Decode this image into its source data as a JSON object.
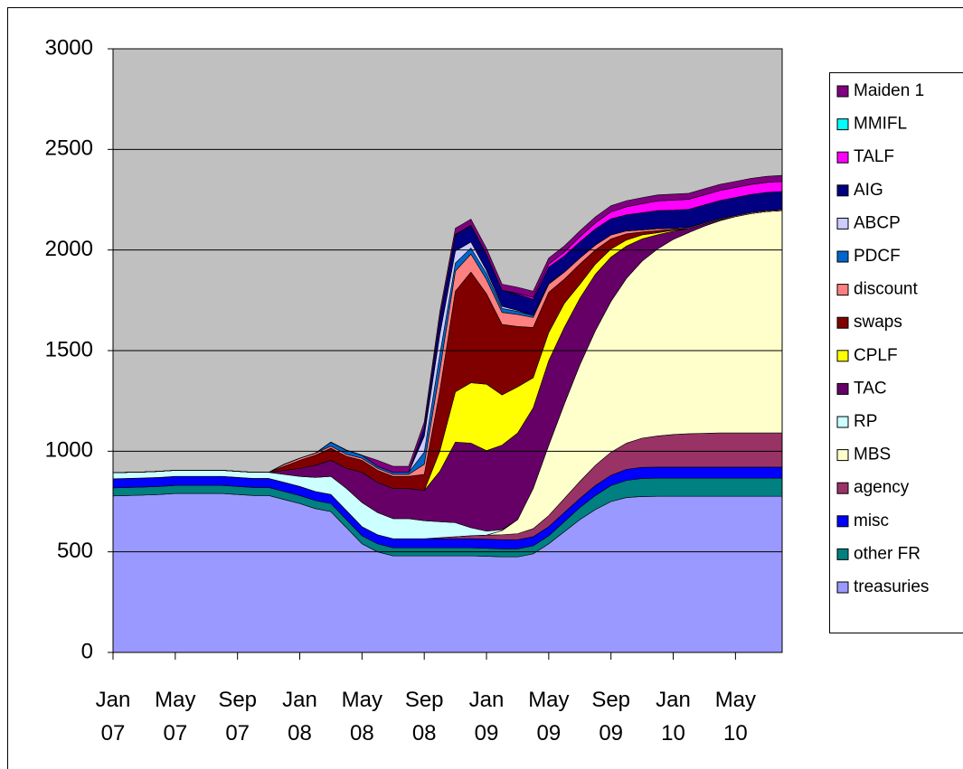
{
  "chart_data": {
    "type": "stacked_area",
    "categories": [
      "Jan 07",
      null,
      null,
      null,
      "May 07",
      null,
      null,
      null,
      "Sep 07",
      null,
      null,
      null,
      "Jan 08",
      null,
      null,
      null,
      "May 08",
      null,
      null,
      null,
      "Sep 08",
      null,
      null,
      null,
      "Jan 09",
      null,
      null,
      null,
      "May 09",
      null,
      null,
      null,
      "Sep 09",
      null,
      null,
      null,
      "Jan 10",
      null,
      null,
      null,
      "May 10",
      null,
      null,
      null
    ],
    "ylim": [
      0,
      3000
    ],
    "yticks": [
      0,
      500,
      1000,
      1500,
      2000,
      2500,
      3000
    ],
    "grid": true,
    "legend": "right",
    "series": [
      {
        "name": "treasuries",
        "color": "#9999ff",
        "values": [
          778,
          780,
          782,
          785,
          790,
          790,
          790,
          790,
          785,
          780,
          780,
          760,
          740,
          715,
          700,
          620,
          540,
          500,
          480,
          480,
          480,
          480,
          480,
          480,
          478,
          475,
          475,
          490,
          540,
          600,
          660,
          710,
          750,
          770,
          775,
          776,
          776,
          776,
          776,
          776,
          776,
          776,
          776,
          776
        ]
      },
      {
        "name": "other FR",
        "color": "#008080",
        "values": [
          40,
          40,
          40,
          40,
          40,
          40,
          40,
          40,
          40,
          40,
          40,
          40,
          40,
          40,
          40,
          40,
          40,
          40,
          40,
          40,
          40,
          40,
          40,
          40,
          40,
          40,
          40,
          40,
          40,
          50,
          60,
          70,
          80,
          85,
          90,
          90,
          90,
          90,
          90,
          90,
          90,
          90,
          90,
          90
        ]
      },
      {
        "name": "misc",
        "color": "#0000ff",
        "values": [
          45,
          45,
          45,
          45,
          45,
          45,
          45,
          45,
          45,
          45,
          45,
          45,
          45,
          45,
          45,
          45,
          45,
          45,
          45,
          45,
          45,
          45,
          45,
          45,
          45,
          45,
          45,
          45,
          45,
          45,
          45,
          50,
          50,
          55,
          55,
          55,
          55,
          55,
          55,
          55,
          55,
          55,
          55,
          55
        ]
      },
      {
        "name": "agency",
        "color": "#993366",
        "values": [
          0,
          0,
          0,
          0,
          0,
          0,
          0,
          0,
          0,
          0,
          0,
          0,
          0,
          0,
          0,
          0,
          0,
          0,
          0,
          0,
          0,
          5,
          10,
          15,
          20,
          25,
          30,
          40,
          55,
          70,
          85,
          100,
          115,
          130,
          145,
          155,
          162,
          166,
          168,
          170,
          170,
          170,
          170,
          170
        ]
      },
      {
        "name": "MBS",
        "color": "#ffffcc",
        "values": [
          0,
          0,
          0,
          0,
          0,
          0,
          0,
          0,
          0,
          0,
          0,
          0,
          0,
          0,
          0,
          0,
          0,
          0,
          0,
          0,
          0,
          0,
          0,
          0,
          0,
          20,
          70,
          200,
          350,
          470,
          580,
          670,
          750,
          820,
          880,
          930,
          970,
          1000,
          1030,
          1055,
          1075,
          1090,
          1100,
          1105
        ]
      },
      {
        "name": "RP",
        "color": "#ccffff",
        "values": [
          30,
          30,
          30,
          30,
          30,
          30,
          30,
          30,
          30,
          30,
          30,
          40,
          50,
          70,
          90,
          110,
          120,
          110,
          100,
          100,
          90,
          80,
          70,
          40,
          20,
          5,
          0,
          0,
          0,
          0,
          0,
          0,
          0,
          0,
          0,
          0,
          0,
          0,
          0,
          0,
          0,
          0,
          0,
          0
        ]
      },
      {
        "name": "TAC",
        "color": "#660066",
        "values": [
          0,
          0,
          0,
          0,
          0,
          0,
          0,
          0,
          0,
          0,
          0,
          20,
          40,
          60,
          80,
          100,
          150,
          150,
          150,
          150,
          150,
          250,
          400,
          420,
          400,
          420,
          430,
          400,
          420,
          380,
          330,
          280,
          220,
          160,
          110,
          70,
          40,
          20,
          10,
          5,
          0,
          0,
          0,
          0
        ]
      },
      {
        "name": "CPLF",
        "color": "#ffff00",
        "values": [
          0,
          0,
          0,
          0,
          0,
          0,
          0,
          0,
          0,
          0,
          0,
          0,
          0,
          0,
          0,
          0,
          0,
          0,
          0,
          0,
          0,
          100,
          250,
          300,
          330,
          250,
          230,
          150,
          140,
          120,
          70,
          50,
          40,
          30,
          20,
          10,
          5,
          0,
          0,
          0,
          0,
          0,
          0,
          0
        ]
      },
      {
        "name": "swaps",
        "color": "#800000",
        "values": [
          0,
          0,
          0,
          0,
          0,
          0,
          0,
          0,
          0,
          0,
          0,
          20,
          40,
          50,
          60,
          60,
          60,
          60,
          60,
          60,
          80,
          300,
          500,
          550,
          450,
          350,
          300,
          250,
          200,
          120,
          100,
          70,
          50,
          30,
          15,
          10,
          5,
          0,
          0,
          0,
          0,
          0,
          0,
          0
        ]
      },
      {
        "name": "discount",
        "color": "#ff8080",
        "values": [
          0,
          0,
          0,
          0,
          0,
          0,
          0,
          0,
          0,
          0,
          0,
          10,
          10,
          10,
          10,
          10,
          10,
          10,
          10,
          10,
          50,
          100,
          100,
          90,
          70,
          60,
          60,
          50,
          40,
          35,
          30,
          25,
          20,
          15,
          10,
          10,
          5,
          5,
          5,
          5,
          5,
          5,
          5,
          5
        ]
      },
      {
        "name": "PDCF",
        "color": "#0066cc",
        "values": [
          0,
          0,
          0,
          0,
          0,
          0,
          0,
          0,
          0,
          0,
          0,
          0,
          0,
          0,
          20,
          20,
          15,
          10,
          10,
          10,
          60,
          80,
          40,
          30,
          30,
          20,
          15,
          10,
          5,
          0,
          0,
          0,
          0,
          0,
          0,
          0,
          0,
          0,
          0,
          0,
          0,
          0,
          0,
          0
        ]
      },
      {
        "name": "ABCP",
        "color": "#ccccff",
        "values": [
          0,
          0,
          0,
          0,
          0,
          0,
          0,
          0,
          0,
          0,
          0,
          0,
          0,
          0,
          0,
          0,
          0,
          0,
          0,
          0,
          80,
          100,
          60,
          30,
          15,
          10,
          5,
          0,
          0,
          0,
          0,
          0,
          0,
          0,
          0,
          0,
          0,
          0,
          0,
          0,
          0,
          0,
          0,
          0
        ]
      },
      {
        "name": "AIG",
        "color": "#000080",
        "values": [
          0,
          0,
          0,
          0,
          0,
          0,
          0,
          0,
          0,
          0,
          0,
          0,
          0,
          0,
          0,
          0,
          0,
          0,
          0,
          0,
          40,
          80,
          80,
          80,
          80,
          80,
          80,
          80,
          80,
          80,
          80,
          80,
          80,
          80,
          85,
          90,
          90,
          90,
          90,
          90,
          90,
          90,
          90,
          90
        ]
      },
      {
        "name": "TALF",
        "color": "#ff00ff",
        "values": [
          0,
          0,
          0,
          0,
          0,
          0,
          0,
          0,
          0,
          0,
          0,
          0,
          0,
          0,
          0,
          0,
          0,
          0,
          0,
          0,
          0,
          0,
          0,
          0,
          0,
          0,
          5,
          10,
          15,
          20,
          25,
          30,
          35,
          40,
          45,
          48,
          50,
          50,
          50,
          50,
          50,
          50,
          50,
          50
        ]
      },
      {
        "name": "MMIFL",
        "color": "#00ffff",
        "values": [
          0,
          0,
          0,
          0,
          0,
          0,
          0,
          0,
          0,
          0,
          0,
          0,
          0,
          0,
          0,
          0,
          0,
          0,
          0,
          0,
          0,
          3,
          3,
          3,
          0,
          0,
          0,
          0,
          0,
          0,
          0,
          0,
          0,
          0,
          0,
          0,
          0,
          0,
          0,
          0,
          0,
          0,
          0,
          0
        ]
      },
      {
        "name": "Maiden 1",
        "color": "#800080",
        "values": [
          0,
          0,
          0,
          0,
          0,
          0,
          0,
          0,
          0,
          0,
          0,
          0,
          0,
          0,
          0,
          0,
          0,
          30,
          30,
          30,
          30,
          30,
          30,
          30,
          30,
          30,
          30,
          30,
          30,
          30,
          30,
          30,
          30,
          30,
          30,
          30,
          30,
          30,
          30,
          30,
          30,
          30,
          30,
          30
        ]
      }
    ]
  }
}
